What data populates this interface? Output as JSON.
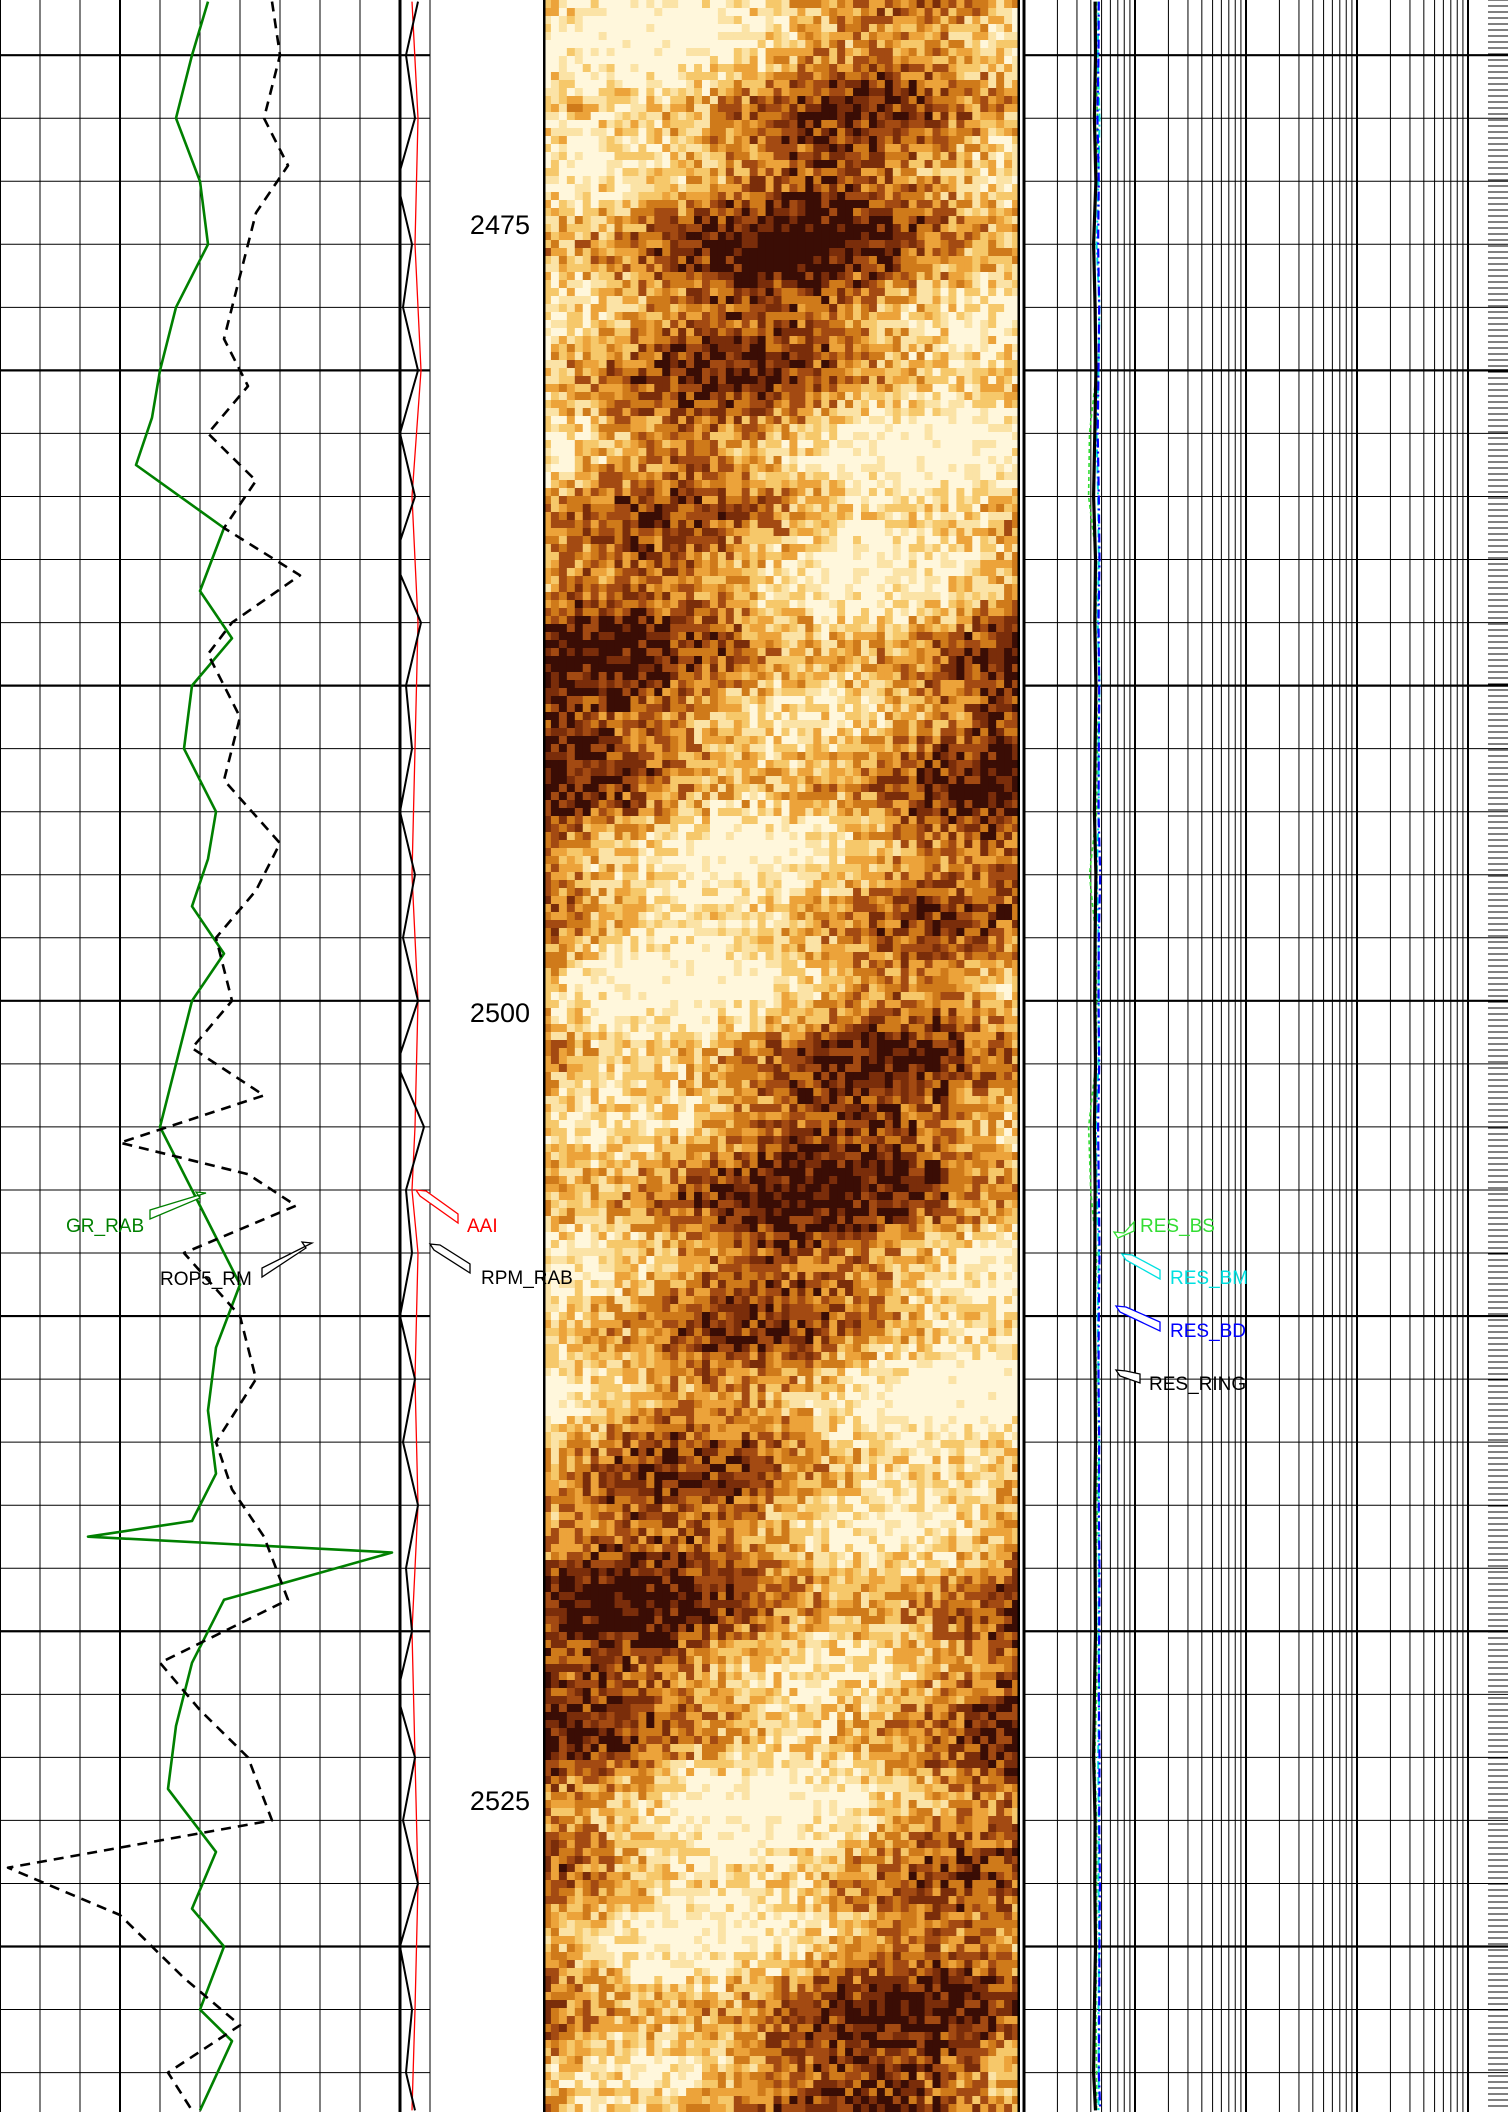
{
  "chart_data": {
    "type": "line",
    "depth_ticks": [
      2475,
      2500,
      2525
    ],
    "depth_range": [
      2468.25,
      2535.25
    ],
    "image_track": {
      "palette": [
        "#3a0d05",
        "#7a2d0a",
        "#a34a12",
        "#cf7a1a",
        "#eca33a",
        "#f6c86a",
        "#fbe3a6",
        "#fff7dc"
      ]
    },
    "colors": {
      "GR_RAB": "#008000",
      "ROP5_RM": "#000000",
      "AAI": "#ff0000",
      "RPM_RAB": "#000000",
      "RES_BS": "#33dd33",
      "RES_BM": "#00e0e0",
      "RES_BD": "#0000ff",
      "RES_RING": "#000000"
    },
    "curve_labels": {
      "GR_RAB": "GR_RAB",
      "ROP5_RM": "ROP5_RM",
      "AAI": "AAI",
      "RPM_RAB": "RPM_RAB",
      "RES_BS": "RES_BS",
      "RES_BM": "RES_BM",
      "RES_BD": "RES_BD",
      "RES_RING": "RES_RING"
    },
    "series": [
      {
        "name": "GR_RAB",
        "depth": [
          2468.3,
          2470,
          2472,
          2474,
          2476,
          2478,
          2480,
          2481.5,
          2483,
          2485,
          2487,
          2488.5,
          2490,
          2492,
          2494,
          2495.5,
          2497,
          2498.5,
          2500,
          2502,
          2504,
          2505.5,
          2507,
          2509,
          2511,
          2513,
          2515,
          2516.5,
          2517,
          2517.5,
          2519,
          2521,
          2523,
          2525,
          2527,
          2528.8,
          2530,
          2532,
          2533,
          2535.2
        ],
        "values": [
          52,
          48,
          44,
          50,
          52,
          44,
          40,
          38,
          34,
          56,
          50,
          58,
          48,
          46,
          54,
          52,
          48,
          56,
          48,
          44,
          40,
          46,
          52,
          60,
          54,
          52,
          54,
          48,
          22,
          98,
          56,
          48,
          44,
          42,
          54,
          48,
          56,
          50,
          58,
          50
        ]
      },
      {
        "name": "ROP5_RM",
        "depth": [
          2468.3,
          2470,
          2472,
          2473.5,
          2475,
          2477,
          2479,
          2480.5,
          2482,
          2483.5,
          2485,
          2486.5,
          2488,
          2489,
          2491,
          2493,
          2495,
          2496.5,
          2498,
          2500,
          2501.5,
          2503,
          2504.5,
          2505.5,
          2506.5,
          2508,
          2510,
          2512,
          2514,
          2515.5,
          2517,
          2519,
          2521,
          2522.5,
          2524,
          2526,
          2527.5,
          2529,
          2531,
          2532.5,
          2534,
          2535.2
        ],
        "values": [
          68,
          70,
          66,
          72,
          64,
          60,
          56,
          62,
          52,
          64,
          56,
          75,
          58,
          52,
          60,
          56,
          70,
          64,
          54,
          58,
          48,
          66,
          30,
          62,
          74,
          46,
          60,
          64,
          54,
          58,
          66,
          72,
          40,
          50,
          62,
          68,
          2,
          30,
          46,
          60,
          42,
          48
        ]
      },
      {
        "name": "AAI",
        "depth": [
          2468.3,
          2472,
          2476,
          2480,
          2484,
          2488,
          2492,
          2496,
          2500,
          2504,
          2506,
          2508,
          2512,
          2516,
          2520,
          2524,
          2528,
          2532,
          2535.2
        ],
        "values": [
          104,
          106,
          105,
          107,
          104,
          106,
          105,
          104,
          106,
          105,
          104,
          106,
          105,
          106,
          104,
          105,
          106,
          105,
          104
        ]
      },
      {
        "name": "RPM_RAB",
        "depth": [
          2468.3,
          2470,
          2472,
          2474,
          2476,
          2478,
          2480,
          2482,
          2484,
          2486,
          2488,
          2490,
          2492,
          2494,
          2496,
          2498,
          2500,
          2502,
          2504,
          2506,
          2508,
          2510,
          2512,
          2514,
          2516,
          2518,
          2520,
          2522,
          2524,
          2526,
          2528,
          2530,
          2532,
          2534,
          2535.2
        ],
        "values": [
          130,
          110,
          125,
          95,
          120,
          105,
          130,
          100,
          125,
          90,
          135,
          110,
          120,
          100,
          125,
          105,
          130,
          95,
          140,
          110,
          120,
          100,
          125,
          105,
          130,
          110,
          120,
          95,
          125,
          105,
          130,
          100,
          120,
          110,
          125
        ]
      },
      {
        "name": "RES_BS",
        "depth": [
          2468.3,
          2470,
          2472,
          2474,
          2476,
          2478,
          2480,
          2482,
          2484,
          2486,
          2488,
          2490,
          2492,
          2494,
          2496,
          2498,
          2500,
          2502,
          2504,
          2506,
          2508,
          2510,
          2512,
          2514,
          2516,
          2518,
          2520,
          2522,
          2524,
          2526,
          2528,
          2530,
          2532,
          2534,
          2535.2
        ],
        "values": [
          1.3,
          1.28,
          1.32,
          1.3,
          1.2,
          1.28,
          1.3,
          1.12,
          1.1,
          1.3,
          1.28,
          1.3,
          1.32,
          1.3,
          1.12,
          1.28,
          1.3,
          1.28,
          1.1,
          1.15,
          1.3,
          1.25,
          1.3,
          1.3,
          1.32,
          1.28,
          1.3,
          1.3,
          1.25,
          1.3,
          1.3,
          1.3,
          1.28,
          1.3,
          1.3
        ]
      },
      {
        "name": "RES_BM",
        "depth": [
          2468.3,
          2470,
          2472,
          2474,
          2476,
          2478,
          2480,
          2482,
          2484,
          2486,
          2488,
          2490,
          2492,
          2494,
          2496,
          2498,
          2500,
          2502,
          2504,
          2506,
          2508,
          2510,
          2512,
          2514,
          2516,
          2518,
          2520,
          2522,
          2524,
          2526,
          2528,
          2530,
          2532,
          2534,
          2535.2
        ],
        "values": [
          1.35,
          1.33,
          1.38,
          1.35,
          1.3,
          1.38,
          1.35,
          1.3,
          1.34,
          1.36,
          1.33,
          1.38,
          1.35,
          1.36,
          1.3,
          1.35,
          1.36,
          1.35,
          1.28,
          1.3,
          1.36,
          1.33,
          1.35,
          1.37,
          1.35,
          1.36,
          1.35,
          1.37,
          1.34,
          1.36,
          1.35,
          1.37,
          1.35,
          1.36,
          1.35
        ]
      },
      {
        "name": "RES_BD",
        "depth": [
          2468.3,
          2470,
          2472,
          2474,
          2476,
          2478,
          2480,
          2482,
          2484,
          2486,
          2488,
          2490,
          2492,
          2494,
          2496,
          2498,
          2500,
          2502,
          2504,
          2506,
          2508,
          2510,
          2512,
          2514,
          2516,
          2518,
          2520,
          2522,
          2524,
          2526,
          2528,
          2530,
          2532,
          2534,
          2535.2
        ],
        "values": [
          1.36,
          1.35,
          1.32,
          1.36,
          1.34,
          1.37,
          1.35,
          1.33,
          1.36,
          1.38,
          1.35,
          1.37,
          1.36,
          1.35,
          1.4,
          1.36,
          1.35,
          1.37,
          1.34,
          1.36,
          1.38,
          1.36,
          1.35,
          1.37,
          1.36,
          1.38,
          1.37,
          1.36,
          1.38,
          1.37,
          1.39,
          1.38,
          1.37,
          1.36,
          1.4
        ]
      },
      {
        "name": "RES_RING",
        "depth": [
          2468.3,
          2470,
          2472,
          2474,
          2476,
          2478,
          2480,
          2482,
          2484,
          2486,
          2488,
          2490,
          2492,
          2494,
          2496,
          2498,
          2500,
          2502,
          2504,
          2506,
          2508,
          2510,
          2512,
          2514,
          2516,
          2518,
          2520,
          2522,
          2524,
          2526,
          2528,
          2530,
          2532,
          2534,
          2535.2
        ],
        "values": [
          1.26,
          1.27,
          1.24,
          1.28,
          1.22,
          1.26,
          1.28,
          1.25,
          1.22,
          1.27,
          1.25,
          1.28,
          1.26,
          1.24,
          1.28,
          1.26,
          1.25,
          1.27,
          1.24,
          1.26,
          1.25,
          1.24,
          1.26,
          1.27,
          1.25,
          1.26,
          1.27,
          1.24,
          1.22,
          1.26,
          1.25,
          1.27,
          1.24,
          1.22,
          1.27
        ]
      }
    ]
  }
}
